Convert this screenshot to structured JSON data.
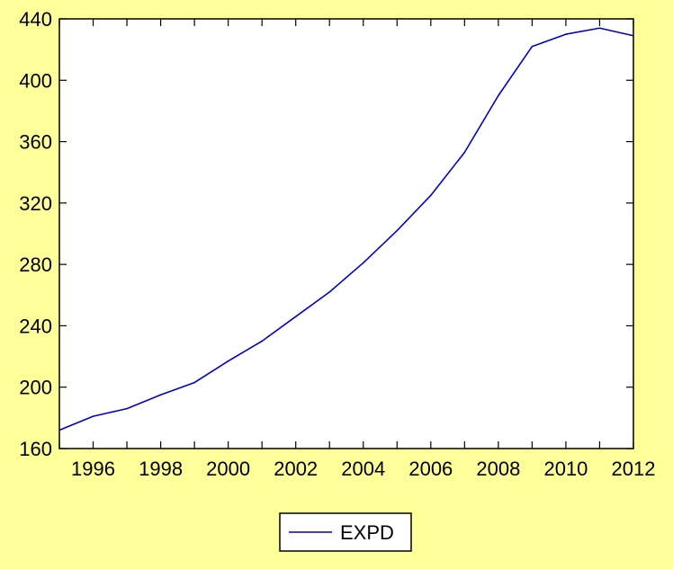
{
  "colors": {
    "background": "#ffff99",
    "plot_background": "#ffffff",
    "series": "#0000cc",
    "axis": "#000000"
  },
  "chart_data": {
    "type": "line",
    "title": "",
    "xlabel": "",
    "ylabel": "",
    "xlim": [
      1995,
      2012
    ],
    "ylim": [
      160,
      440
    ],
    "x_ticks": [
      1996,
      1998,
      2000,
      2002,
      2004,
      2006,
      2008,
      2010,
      2012
    ],
    "y_ticks": [
      160,
      200,
      240,
      280,
      320,
      360,
      400,
      440
    ],
    "grid": false,
    "legend_position": "bottom-center",
    "series": [
      {
        "name": "EXPD",
        "color": "#0000cc",
        "x": [
          1995,
          1996,
          1997,
          1998,
          1999,
          2000,
          2001,
          2002,
          2003,
          2004,
          2005,
          2006,
          2007,
          2008,
          2009,
          2010,
          2011,
          2012
        ],
        "values": [
          172,
          181,
          186,
          195,
          203,
          217,
          230,
          246,
          262,
          281,
          302,
          325,
          353,
          390,
          422,
          430,
          434,
          429
        ]
      }
    ]
  }
}
